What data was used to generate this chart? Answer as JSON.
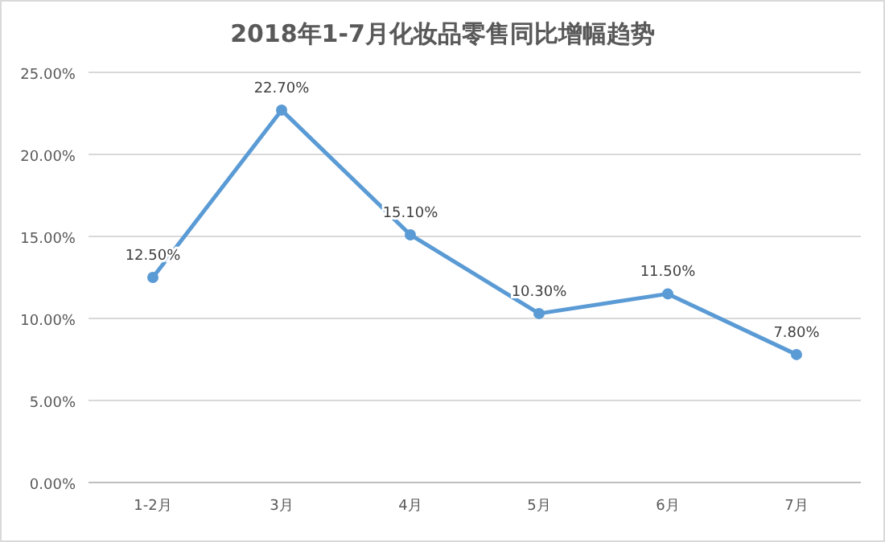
{
  "chart_data": {
    "type": "line",
    "title": "2018年1-7月化妆品零售同比增幅趋势",
    "categories": [
      "1-2月",
      "3月",
      "4月",
      "5月",
      "6月",
      "7月"
    ],
    "series": [
      {
        "color": "#5b9bd5",
        "values": [
          12.5,
          22.7,
          15.1,
          10.3,
          11.5,
          7.8
        ],
        "value_labels": [
          "12.50%",
          "22.70%",
          "15.10%",
          "10.30%",
          "11.50%",
          "7.80%"
        ]
      }
    ],
    "ylim": [
      0,
      25
    ],
    "yticks": [
      {
        "value": 0,
        "label": "0.00%"
      },
      {
        "value": 5,
        "label": "5.00%"
      },
      {
        "value": 10,
        "label": "10.00%"
      },
      {
        "value": 15,
        "label": "15.00%"
      },
      {
        "value": 20,
        "label": "20.00%"
      },
      {
        "value": 25,
        "label": "25.00%"
      }
    ],
    "grid": "y",
    "marker": "circle",
    "line_style": "solid"
  }
}
